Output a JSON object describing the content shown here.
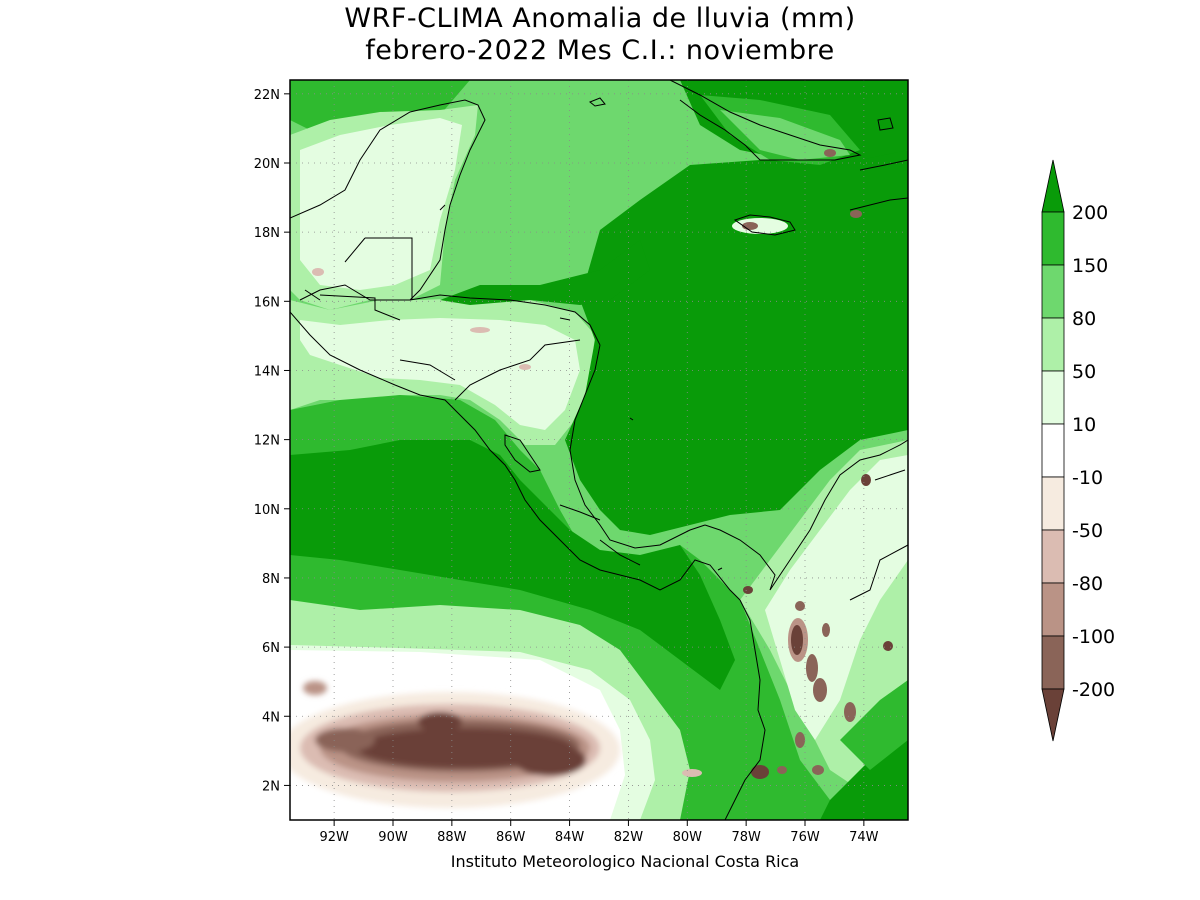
{
  "title_line1": "WRF-CLIMA Anomalia de lluvia (mm)",
  "title_line2": "febrero-2022 Mes C.I.: noviembre",
  "credit": "Instituto Meteorologico Nacional Costa Rica",
  "map": {
    "lon_range": [
      -93.5,
      -72.5
    ],
    "lat_range": [
      1.0,
      22.4
    ],
    "lon_ticks": [
      "92W",
      "90W",
      "88W",
      "86W",
      "84W",
      "82W",
      "80W",
      "78W",
      "76W",
      "74W"
    ],
    "lat_ticks": [
      "2N",
      "4N",
      "6N",
      "8N",
      "10N",
      "12N",
      "14N",
      "16N",
      "18N",
      "20N",
      "22N"
    ],
    "grid": true
  },
  "colorbar": {
    "labels": [
      "200",
      "150",
      "80",
      "50",
      "10",
      "-10",
      "-50",
      "-80",
      "-100",
      "-200"
    ],
    "colors": [
      "#099b09",
      "#2fba2f",
      "#6ed86e",
      "#aef0a8",
      "#e4fde1",
      "#ffffff",
      "#f6ebe0",
      "#dbbcb2",
      "#ba9386",
      "#8a6458",
      "#6a4138"
    ]
  }
}
